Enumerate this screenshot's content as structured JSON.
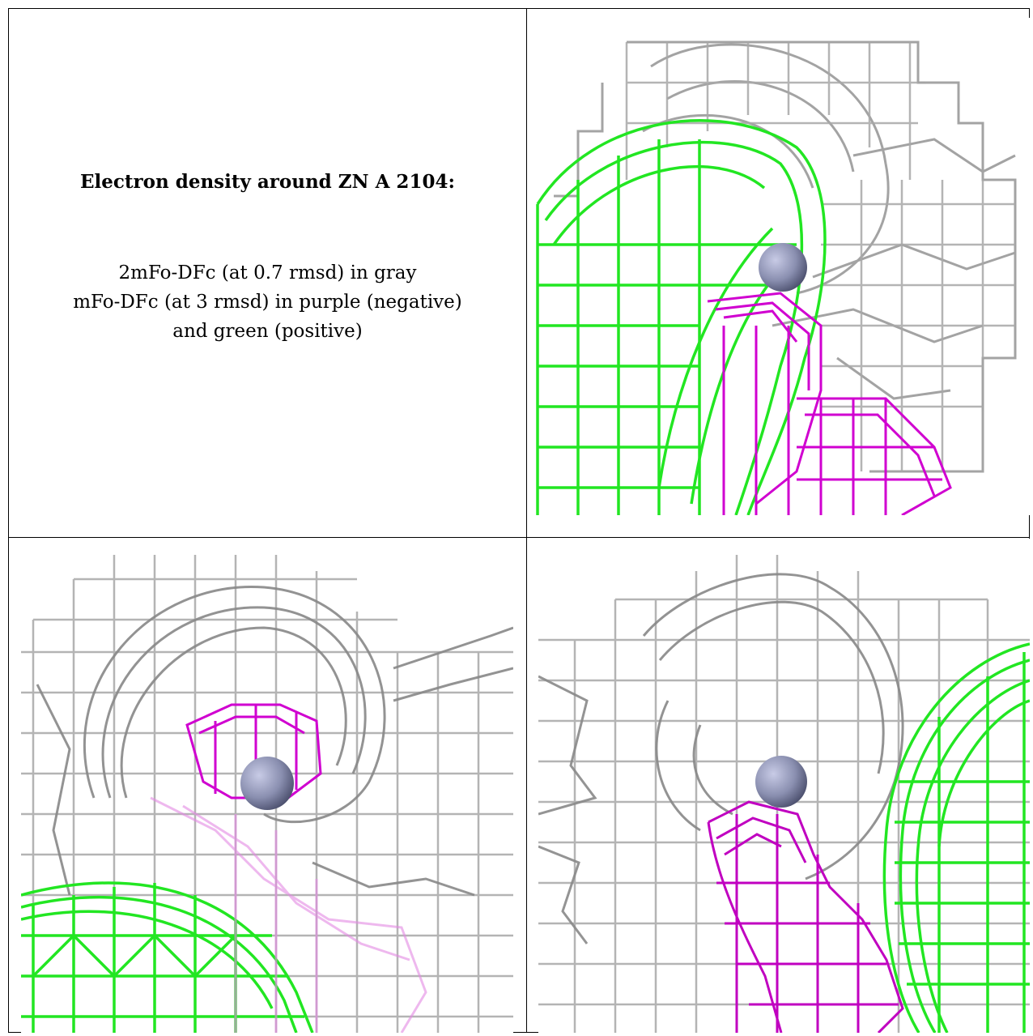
{
  "caption": {
    "title": "Electron density around ZN A 2104:",
    "line1": "2mFo-DFc (at 0.7 rmsd) in gray",
    "line2": "mFo-DFc (at 3 rmsd) in purple (negative)",
    "line3": "and green (positive)"
  },
  "colors": {
    "gray_map": "#9a9a9a",
    "negative_map": "#d000d0",
    "positive_map": "#22e622",
    "zinc_atom": "#8a8fb0"
  },
  "panels": [
    {
      "name": "top-right-view"
    },
    {
      "name": "bottom-left-view"
    },
    {
      "name": "bottom-right-view"
    }
  ]
}
